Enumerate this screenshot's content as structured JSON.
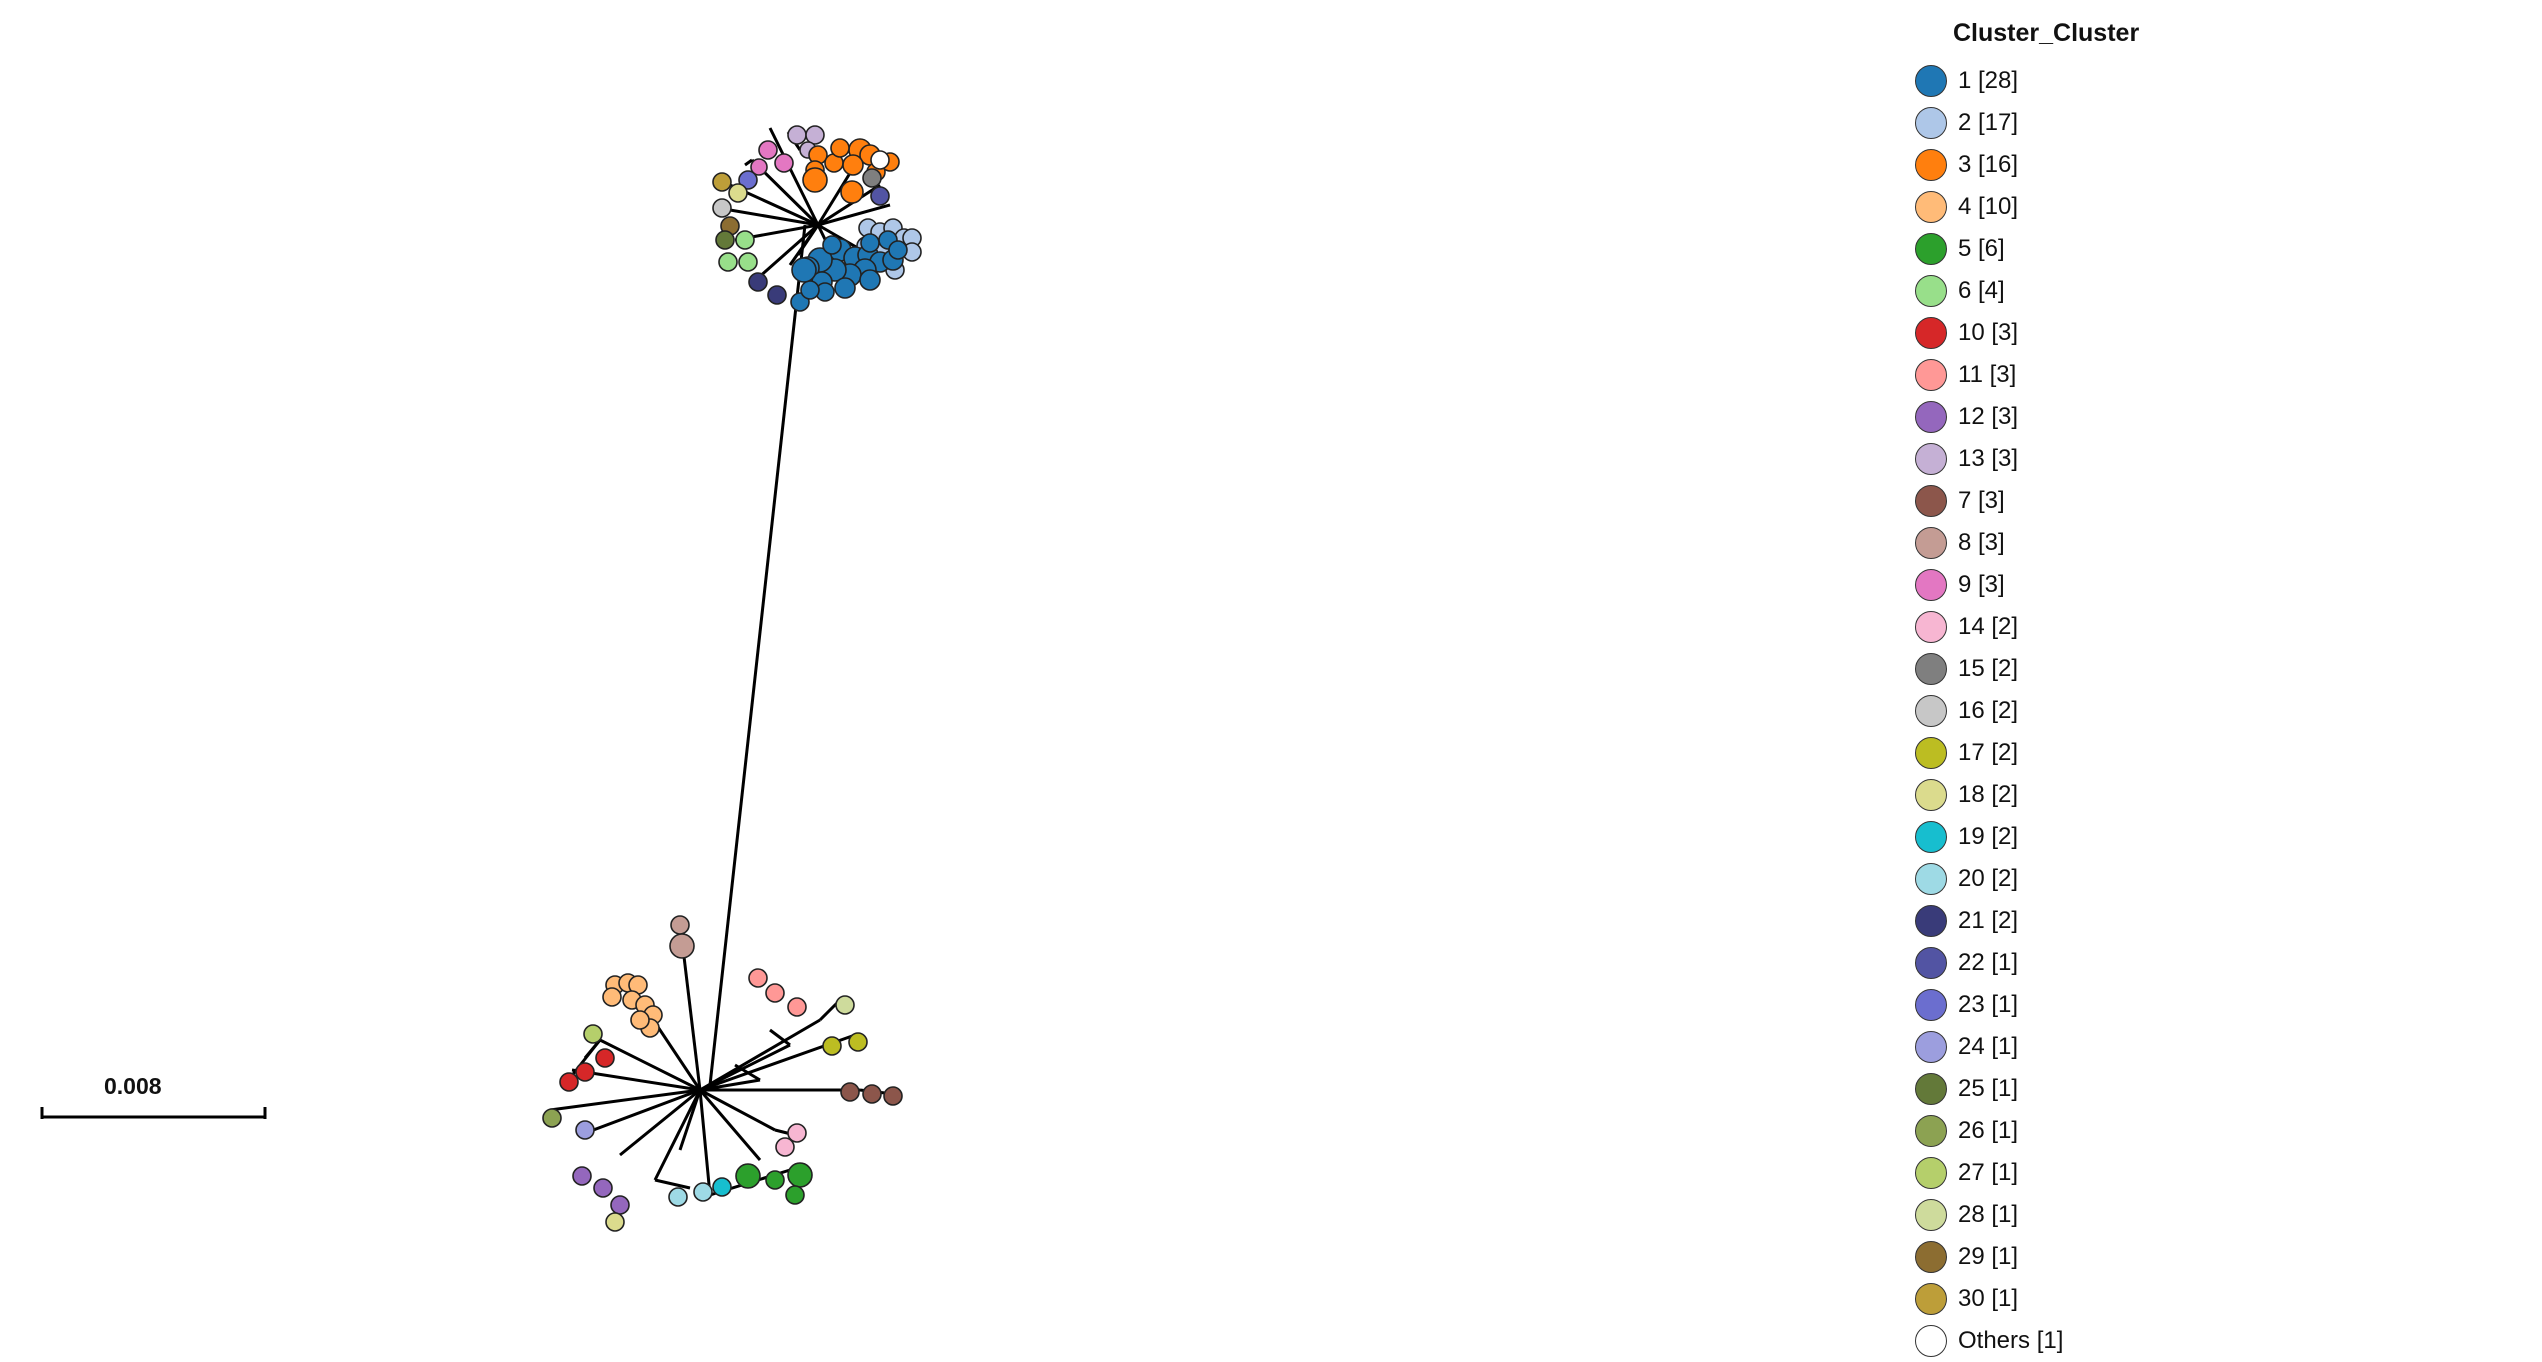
{
  "legend": {
    "title": "Cluster_Cluster",
    "items": [
      {
        "label": "1 [28]",
        "color": "#1f77b4"
      },
      {
        "label": "2 [17]",
        "color": "#aec7e8"
      },
      {
        "label": "3 [16]",
        "color": "#ff7f0e"
      },
      {
        "label": "4 [10]",
        "color": "#ffbb78"
      },
      {
        "label": "5 [6]",
        "color": "#2ca02c"
      },
      {
        "label": "6 [4]",
        "color": "#98df8a"
      },
      {
        "label": "10 [3]",
        "color": "#d62728"
      },
      {
        "label": "11 [3]",
        "color": "#ff9896"
      },
      {
        "label": "12 [3]",
        "color": "#9467bd"
      },
      {
        "label": "13 [3]",
        "color": "#c5b0d5"
      },
      {
        "label": "7 [3]",
        "color": "#8c564b"
      },
      {
        "label": "8 [3]",
        "color": "#c49c94"
      },
      {
        "label": "9 [3]",
        "color": "#e377c2"
      },
      {
        "label": "14 [2]",
        "color": "#f7b6d2"
      },
      {
        "label": "15 [2]",
        "color": "#7f7f7f"
      },
      {
        "label": "16 [2]",
        "color": "#c7c7c7"
      },
      {
        "label": "17 [2]",
        "color": "#bcbd22"
      },
      {
        "label": "18 [2]",
        "color": "#dbdb8d"
      },
      {
        "label": "19 [2]",
        "color": "#17becf"
      },
      {
        "label": "20 [2]",
        "color": "#9edae5"
      },
      {
        "label": "21 [2]",
        "color": "#393b79"
      },
      {
        "label": "22 [1]",
        "color": "#5254a3"
      },
      {
        "label": "23 [1]",
        "color": "#6b6ecf"
      },
      {
        "label": "24 [1]",
        "color": "#9c9ede"
      },
      {
        "label": "25 [1]",
        "color": "#637939"
      },
      {
        "label": "26 [1]",
        "color": "#8ca252"
      },
      {
        "label": "27 [1]",
        "color": "#b5cf6b"
      },
      {
        "label": "28 [1]",
        "color": "#cedb9c"
      },
      {
        "label": "29 [1]",
        "color": "#8c6d31"
      },
      {
        "label": "30 [1]",
        "color": "#bd9e39"
      },
      {
        "label": "Others [1]",
        "color": "#ffffff"
      }
    ]
  },
  "scale_bar": {
    "label": "0.008"
  }
}
